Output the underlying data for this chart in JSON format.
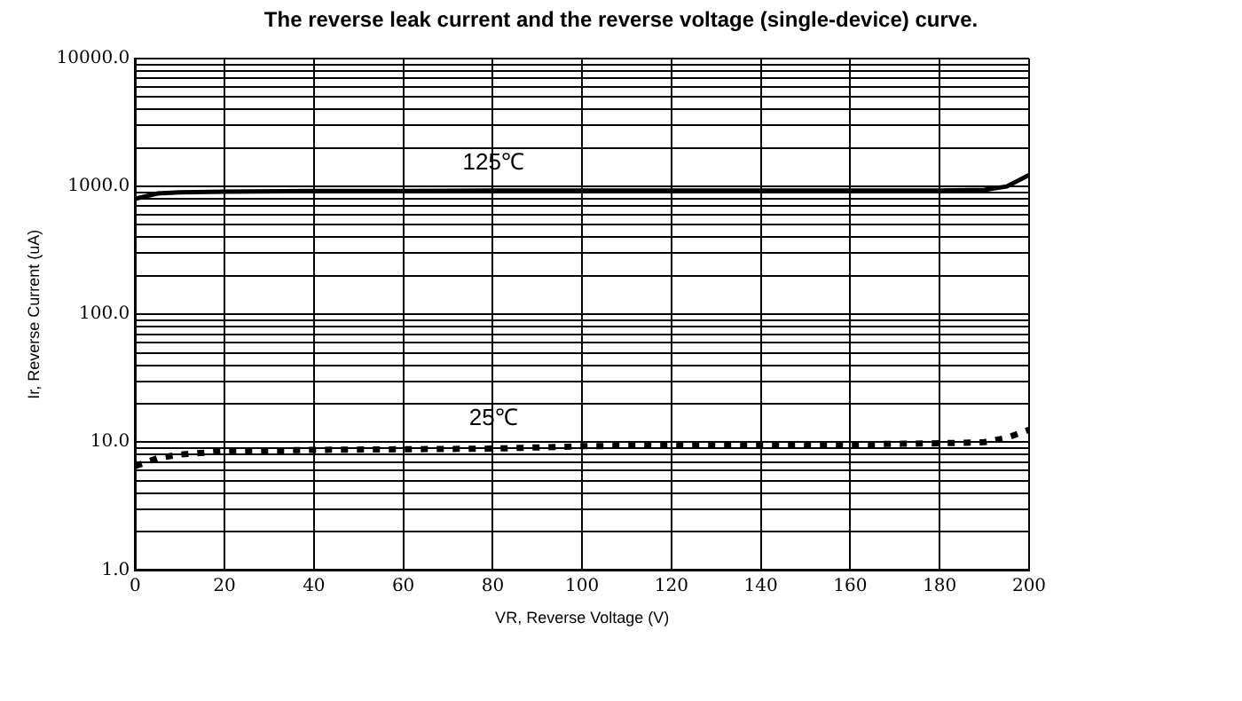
{
  "chart_data": {
    "type": "line",
    "title": "The reverse leak current and the reverse voltage (single-device) curve.",
    "xlabel": "VR, Reverse Voltage (V)",
    "ylabel": "Ir, Reverse Current (uA)",
    "log": "y",
    "grid": true,
    "legend": false,
    "marker": "none",
    "xlim": [
      0,
      200
    ],
    "xticks": [
      0,
      20,
      40,
      60,
      80,
      100,
      120,
      140,
      160,
      180,
      200
    ],
    "ylim": [
      1,
      10000
    ],
    "yticks": [
      {
        "value": 1,
        "label": "1.0"
      },
      {
        "value": 2,
        "label": null
      },
      {
        "value": 3,
        "label": null
      },
      {
        "value": 4,
        "label": null
      },
      {
        "value": 5,
        "label": null
      },
      {
        "value": 6,
        "label": null
      },
      {
        "value": 7,
        "label": null
      },
      {
        "value": 8,
        "label": null
      },
      {
        "value": 9,
        "label": null
      },
      {
        "value": 10,
        "label": "10.0"
      },
      {
        "value": 20,
        "label": null
      },
      {
        "value": 30,
        "label": null
      },
      {
        "value": 40,
        "label": null
      },
      {
        "value": 50,
        "label": null
      },
      {
        "value": 60,
        "label": null
      },
      {
        "value": 70,
        "label": null
      },
      {
        "value": 80,
        "label": null
      },
      {
        "value": 90,
        "label": null
      },
      {
        "value": 100,
        "label": "100.0"
      },
      {
        "value": 200,
        "label": null
      },
      {
        "value": 300,
        "label": null
      },
      {
        "value": 400,
        "label": null
      },
      {
        "value": 500,
        "label": null
      },
      {
        "value": 600,
        "label": null
      },
      {
        "value": 700,
        "label": null
      },
      {
        "value": 800,
        "label": null
      },
      {
        "value": 900,
        "label": null
      },
      {
        "value": 1000,
        "label": "1000.0"
      },
      {
        "value": 2000,
        "label": null
      },
      {
        "value": 3000,
        "label": null
      },
      {
        "value": 4000,
        "label": null
      },
      {
        "value": 5000,
        "label": null
      },
      {
        "value": 6000,
        "label": null
      },
      {
        "value": 7000,
        "label": null
      },
      {
        "value": 8000,
        "label": null
      },
      {
        "value": 9000,
        "label": null
      },
      {
        "value": 10000,
        "label": "10000.0"
      }
    ],
    "series": [
      {
        "name": "125℃",
        "color": "#000000",
        "line_style": "solid",
        "x": [
          0,
          5,
          10,
          20,
          40,
          60,
          80,
          100,
          120,
          140,
          160,
          180,
          190,
          195,
          200
        ],
        "values": [
          800,
          880,
          900,
          910,
          920,
          920,
          930,
          930,
          930,
          930,
          930,
          930,
          940,
          1000,
          1230
        ]
      },
      {
        "name": "25℃",
        "color": "#000000",
        "line_style": "dotted",
        "x": [
          0,
          5,
          10,
          20,
          40,
          60,
          80,
          100,
          120,
          140,
          160,
          180,
          190,
          195,
          200
        ],
        "values": [
          6.5,
          7.5,
          8,
          8.5,
          8.7,
          8.8,
          8.9,
          9.3,
          9.4,
          9.5,
          9.6,
          9.8,
          10,
          10.8,
          12.5
        ]
      }
    ]
  }
}
